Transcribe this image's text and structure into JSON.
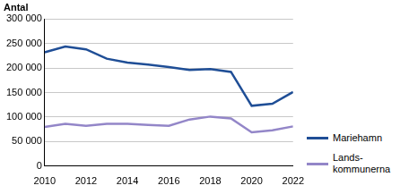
{
  "chart_data": {
    "type": "line",
    "y_label": "Antal",
    "x": [
      2010,
      2011,
      2012,
      2013,
      2014,
      2015,
      2016,
      2017,
      2018,
      2019,
      2020,
      2021,
      2022
    ],
    "series": [
      {
        "name": "Mariehamn",
        "color": "#1f4e96",
        "values": [
          232000,
          244000,
          238000,
          219000,
          211000,
          207000,
          202000,
          196000,
          198000,
          192000,
          123000,
          127000,
          151000
        ]
      },
      {
        "name": "Lands-\nkommunerna",
        "color": "#9386c8",
        "values": [
          80000,
          86000,
          82000,
          86000,
          86000,
          84000,
          82000,
          95000,
          101000,
          97000,
          69000,
          73000,
          81000
        ]
      }
    ],
    "xlim": [
      2010,
      2022
    ],
    "xticks": [
      2010,
      2012,
      2014,
      2016,
      2018,
      2020,
      2022
    ],
    "ylim": [
      0,
      300000
    ],
    "yticks": [
      0,
      {
        "value": 50000,
        "label": "50 000"
      },
      {
        "value": 100000,
        "label": "100 000"
      },
      {
        "value": 150000,
        "label": "150 000"
      },
      {
        "value": 200000,
        "label": "200 000"
      },
      {
        "value": 250000,
        "label": "250 000"
      },
      {
        "value": 300000,
        "label": "300 000"
      }
    ],
    "grid": true,
    "legend": "right"
  }
}
